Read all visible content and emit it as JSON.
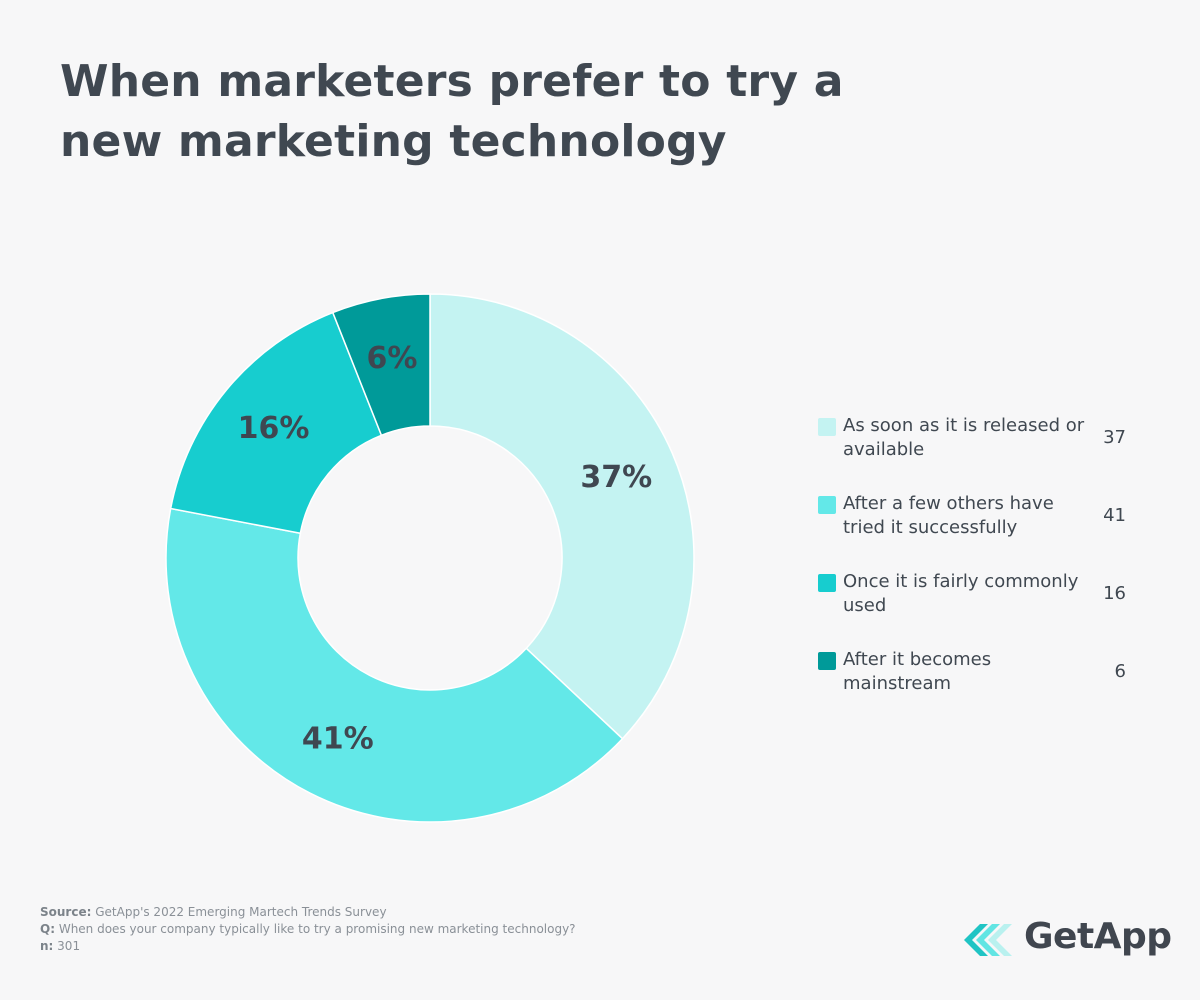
{
  "title": "When marketers prefer to try a new marketing technology",
  "chart_data": {
    "type": "pie",
    "title": "When marketers prefer to try a new marketing technology",
    "categories": [
      "As soon as it is released or available",
      "After a few others have tried it successfully",
      "Once it is fairly commonly used",
      "After it becomes mainstream"
    ],
    "values": [
      37,
      41,
      16,
      6
    ],
    "slice_labels": [
      "37%",
      "41%",
      "16%",
      "6%"
    ],
    "colors": [
      "#c4f3f2",
      "#63e8e8",
      "#17cdcf",
      "#009a99"
    ],
    "legend_position": "right"
  },
  "legend": [
    {
      "label": "As soon as it is released or available",
      "value": "37",
      "color": "#c4f3f2"
    },
    {
      "label": "After a few others have tried it successfully",
      "value": "41",
      "color": "#63e8e8"
    },
    {
      "label": "Once it is fairly commonly used",
      "value": "16",
      "color": "#17cdcf"
    },
    {
      "label": "After it becomes mainstream",
      "value": "6",
      "color": "#009a99"
    }
  ],
  "footer": {
    "source_label": "Source:",
    "source_text": "GetApp's 2022 Emerging Martech Trends Survey",
    "q_label": "Q:",
    "q_text": "When does your company typically like to try a promising new marketing technology?",
    "n_label": "n:",
    "n_text": "301"
  },
  "logo": {
    "text": "GetApp",
    "colors": [
      "#20c4c4",
      "#62e5e3",
      "#b9f1ef"
    ]
  }
}
